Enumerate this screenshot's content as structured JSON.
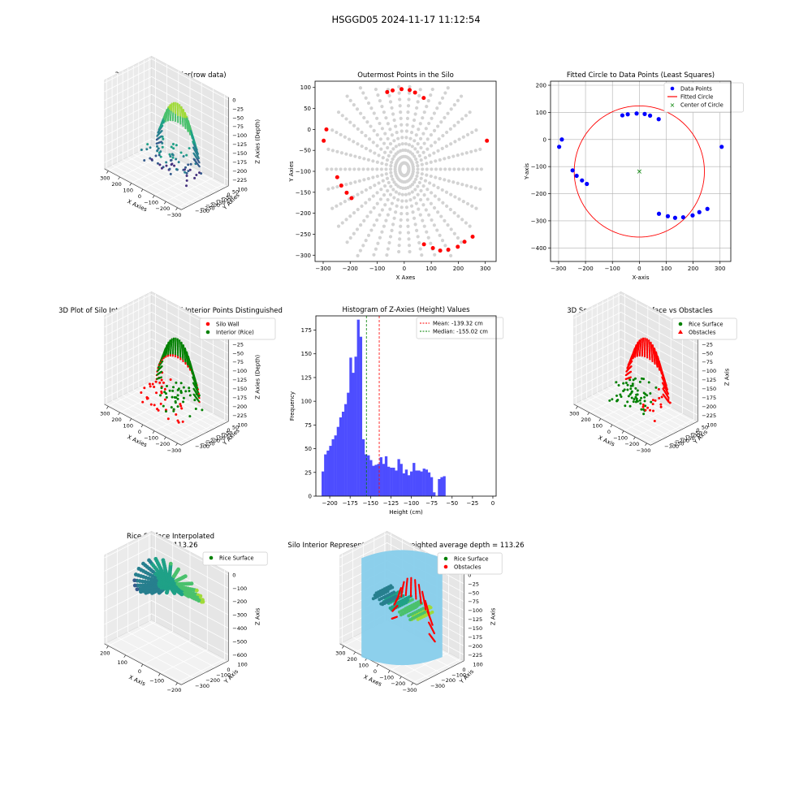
{
  "figure": {
    "suptitle": "HSGGD05 2024-11-17 11:12:54"
  },
  "colors": {
    "blue": "#0000ff",
    "red": "#ff0000",
    "green": "#008000",
    "gray": "#d3d3d3",
    "hist": "#4d4dff",
    "sky": "#87ceeb"
  },
  "chart_data": [
    {
      "id": "p1",
      "type": "scatter3d",
      "title": "3D Plot of Silo Interior(row data)",
      "xlabel": "X Axies",
      "ylabel": "Y Axies",
      "zlabel": "Z Axies (Depth)",
      "xticks": [
        "−300",
        "−200",
        "−100",
        "0",
        "100",
        "200",
        "300"
      ],
      "yticks": [
        "100",
        "50",
        "0",
        "−50",
        "−100",
        "−150",
        "−200",
        "−250",
        "−300"
      ],
      "zticks": [
        "0",
        "−25",
        "−50",
        "−75",
        "−100",
        "−125",
        "−150",
        "−175",
        "−200",
        "−225"
      ],
      "colormap": "viridis"
    },
    {
      "id": "p2",
      "type": "scatter",
      "title": "Outermost Points in the Silo",
      "xlabel": "X Axes",
      "ylabel": "Y Axies",
      "xlim": [
        -330,
        340
      ],
      "ylim": [
        -315,
        115
      ],
      "xticks": [
        -300,
        -200,
        -100,
        0,
        100,
        200,
        300
      ],
      "yticks": [
        100,
        50,
        0,
        -50,
        -100,
        -150,
        -200,
        -250,
        -300
      ],
      "outermost_points": [
        [
          -298,
          -27
        ],
        [
          -288,
          0
        ],
        [
          -248,
          -114
        ],
        [
          -233,
          -134
        ],
        [
          -213,
          -151
        ],
        [
          -195,
          -164
        ],
        [
          -63,
          89
        ],
        [
          -43,
          93
        ],
        [
          -10,
          96
        ],
        [
          20,
          94
        ],
        [
          40,
          88
        ],
        [
          72,
          75
        ],
        [
          73,
          -274
        ],
        [
          106,
          -283
        ],
        [
          133,
          -289
        ],
        [
          163,
          -287
        ],
        [
          198,
          -280
        ],
        [
          223,
          -268
        ],
        [
          253,
          -256
        ],
        [
          306,
          -27
        ]
      ]
    },
    {
      "id": "p3",
      "type": "scatter",
      "title": "Fitted Circle to Data Points (Least Squares)",
      "xlabel": "X-axis",
      "ylabel": "Y-axis",
      "xlim": [
        -330,
        340
      ],
      "ylim": [
        -450,
        215
      ],
      "xticks": [
        -300,
        -200,
        -100,
        0,
        100,
        200,
        300
      ],
      "yticks": [
        200,
        100,
        0,
        -100,
        -200,
        -300,
        -400
      ],
      "legend": [
        "Data Points",
        "Fitted Circle",
        "Center of Circle"
      ],
      "points": [
        [
          -298,
          -27
        ],
        [
          -288,
          0
        ],
        [
          -248,
          -114
        ],
        [
          -233,
          -134
        ],
        [
          -213,
          -151
        ],
        [
          -195,
          -164
        ],
        [
          -63,
          89
        ],
        [
          -43,
          93
        ],
        [
          -10,
          96
        ],
        [
          20,
          94
        ],
        [
          40,
          88
        ],
        [
          72,
          75
        ],
        [
          73,
          -274
        ],
        [
          106,
          -283
        ],
        [
          133,
          -289
        ],
        [
          163,
          -287
        ],
        [
          198,
          -280
        ],
        [
          223,
          -268
        ],
        [
          253,
          -256
        ],
        [
          306,
          -27
        ]
      ],
      "circle": {
        "cx": 0,
        "cy": -118,
        "r": 242
      }
    },
    {
      "id": "p4",
      "type": "scatter3d",
      "title": "3D Plot of Silo Interior with Wall and Interior Points Distinguished",
      "xlabel": "X Axies",
      "ylabel": "Y Axies",
      "zlabel": "Z Axies (Depth)",
      "legend": [
        "Silo Wall",
        "Interior (Rice)"
      ],
      "xticks": [
        "−300",
        "−200",
        "−100",
        "0",
        "100",
        "200",
        "300"
      ],
      "yticks": [
        "100",
        "50",
        "0",
        "−50",
        "−100",
        "−150",
        "−200",
        "−250",
        "−300"
      ],
      "zticks": [
        "0",
        "−25",
        "−50",
        "−75",
        "−100",
        "−125",
        "−150",
        "−175",
        "−200",
        "−225"
      ]
    },
    {
      "id": "p5",
      "type": "bar",
      "title": "Histogram of Z-Axies (Height) Values",
      "xlabel": "Height (cm)",
      "ylabel": "Frequency",
      "xlim": [
        -217,
        4
      ],
      "ylim": [
        0,
        190
      ],
      "xticks": [
        -200,
        -175,
        -150,
        -125,
        -100,
        -75,
        -50,
        -25,
        0
      ],
      "yticks": [
        0,
        25,
        50,
        75,
        100,
        125,
        150,
        175
      ],
      "bin_start": -210,
      "bin_width": 3.1,
      "values": [
        26,
        44,
        48,
        53,
        60,
        64,
        73,
        83,
        89,
        97,
        109,
        146,
        130,
        147,
        186,
        168,
        60,
        44,
        43,
        38,
        32,
        33,
        34,
        41,
        34,
        42,
        31,
        30,
        30,
        27,
        39,
        34,
        24,
        28,
        22,
        26,
        35,
        27,
        27,
        26,
        29,
        28,
        25,
        20,
        4,
        0,
        18,
        20,
        21
      ],
      "mean": -139.32,
      "median": -155.02,
      "legend": [
        "Mean: -139.32 cm",
        "Median: -155.02 cm"
      ]
    },
    {
      "id": "p6",
      "type": "scatter3d",
      "title": "3D Scatter Plot: Rice Surface vs Obstacles",
      "xlabel": "X Axis",
      "ylabel": "Y Axis",
      "zlabel": "Z Axis",
      "legend": [
        "Rice Surface",
        "Obstacles"
      ],
      "xticks": [
        "−300",
        "−200",
        "−100",
        "0",
        "100",
        "200",
        "300"
      ],
      "yticks": [
        "100",
        "50",
        "0",
        "−50",
        "−100",
        "−150",
        "−200",
        "−250",
        "−300"
      ],
      "zticks": [
        "0",
        "−25",
        "−50",
        "−75",
        "−100",
        "−125",
        "−150",
        "−175",
        "−200",
        "−225"
      ]
    },
    {
      "id": "p7",
      "type": "surface3d",
      "title": "Rice Surface Interpolated",
      "subtitle": "depth = 113.26",
      "xlabel": "X Axis",
      "ylabel": "Y Axis",
      "zlabel": "Z Axis",
      "legend": [
        "Rice Surface"
      ],
      "xticks": [
        "−200",
        "−100",
        "0",
        "100",
        "200"
      ],
      "yticks": [
        "100",
        "0",
        "−100",
        "−200",
        "−300"
      ],
      "zticks": [
        "0",
        "−100",
        "−200",
        "−300",
        "−400",
        "−500",
        "−600"
      ],
      "colormap": "viridis"
    },
    {
      "id": "p8",
      "type": "scatter3d",
      "title": "Silo Interior Representation using weighted average depth = 113.26",
      "xlabel": "X Axes",
      "ylabel": "Y Axis",
      "zlabel": "Z Axis",
      "legend": [
        "Rice Surface",
        "Obstacles"
      ],
      "xticks": [
        "−300",
        "−200",
        "−100",
        "0",
        "100",
        "200",
        "300"
      ],
      "yticks": [
        "100",
        "0",
        "−100",
        "−200",
        "−300"
      ],
      "zticks": [
        "0",
        "−25",
        "−50",
        "−75",
        "−100",
        "−125",
        "−150",
        "−175",
        "−200",
        "−225"
      ]
    }
  ]
}
